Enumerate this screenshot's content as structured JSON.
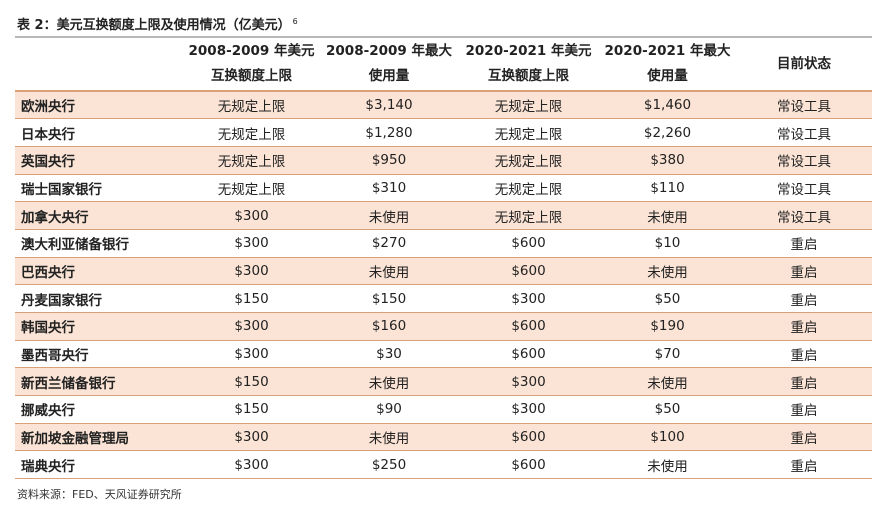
{
  "title": "表 2：美元互换额度上限及使用情况（亿美元）",
  "title_note": "6",
  "headers": [
    "",
    "2008-2009 年美元互换额度上限",
    "2008-2009 年最大使用量",
    "2020-2021 年美元互换额度上限",
    "2020-2021 年最大使用量",
    "目前状态"
  ],
  "rows": [
    [
      "欧洲央行",
      "无规定上限",
      "$3,140",
      "无规定上限",
      "$1,460",
      "常设工具"
    ],
    [
      "日本央行",
      "无规定上限",
      "$1,280",
      "无规定上限",
      "$2,260",
      "常设工具"
    ],
    [
      "英国央行",
      "无规定上限",
      "$950",
      "无规定上限",
      "$380",
      "常设工具"
    ],
    [
      "瑞士国家银行",
      "无规定上限",
      "$310",
      "无规定上限",
      "$110",
      "常设工具"
    ],
    [
      "加拿大央行",
      "$300",
      "未使用",
      "无规定上限",
      "未使用",
      "常设工具"
    ],
    [
      "澳大利亚储备银行",
      "$300",
      "$270",
      "$600",
      "$10",
      "重启"
    ],
    [
      "巴西央行",
      "$300",
      "未使用",
      "$600",
      "未使用",
      "重启"
    ],
    [
      "丹麦国家银行",
      "$150",
      "$150",
      "$300",
      "$50",
      "重启"
    ],
    [
      "韩国央行",
      "$300",
      "$160",
      "$600",
      "$190",
      "重启"
    ],
    [
      "墨西哥央行",
      "$300",
      "$30",
      "$600",
      "$70",
      "重启"
    ],
    [
      "新西兰储备银行",
      "$150",
      "未使用",
      "$300",
      "未使用",
      "重启"
    ],
    [
      "挪威央行",
      "$150",
      "$90",
      "$300",
      "$50",
      "重启"
    ],
    [
      "新加坡金融管理局",
      "$300",
      "未使用",
      "$600",
      "$100",
      "重启"
    ],
    [
      "瑞典央行",
      "$300",
      "$250",
      "$600",
      "未使用",
      "重启"
    ]
  ],
  "source": "资料来源：FED、天风证券研究所",
  "colors": {
    "shade": "#fbe4d5",
    "rule": "#d9a07a"
  }
}
